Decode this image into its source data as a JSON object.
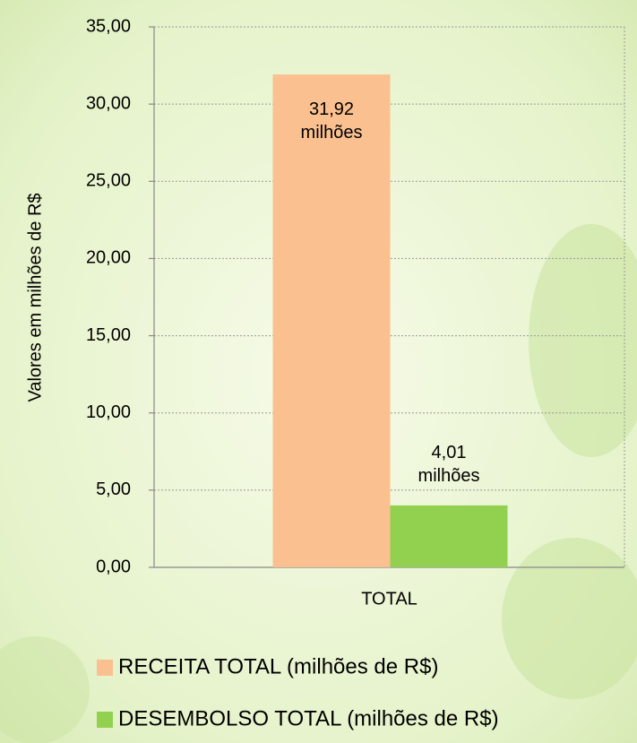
{
  "chart_data": {
    "type": "bar",
    "y_label": "Valores em milhões de R$",
    "categories": [
      "TOTAL"
    ],
    "series": [
      {
        "name": "RECEITA TOTAL (milhões de R$)",
        "color": "#fac090",
        "values": [
          31.92
        ],
        "value_labels": [
          "31,92 milhões"
        ]
      },
      {
        "name": "DESEMBOLSO TOTAL (milhões de R$)",
        "color": "#92d050",
        "values": [
          4.01
        ],
        "value_labels": [
          "4,01 milhões"
        ]
      }
    ],
    "ylim": [
      0,
      35
    ],
    "yticks": [
      {
        "value": 0,
        "label": "0,00"
      },
      {
        "value": 5,
        "label": "5,00"
      },
      {
        "value": 10,
        "label": "10,00"
      },
      {
        "value": 15,
        "label": "15,00"
      },
      {
        "value": 20,
        "label": "20,00"
      },
      {
        "value": 25,
        "label": "25,00"
      },
      {
        "value": 30,
        "label": "30,00"
      },
      {
        "value": 35,
        "label": "35,00"
      }
    ],
    "grid": true
  }
}
